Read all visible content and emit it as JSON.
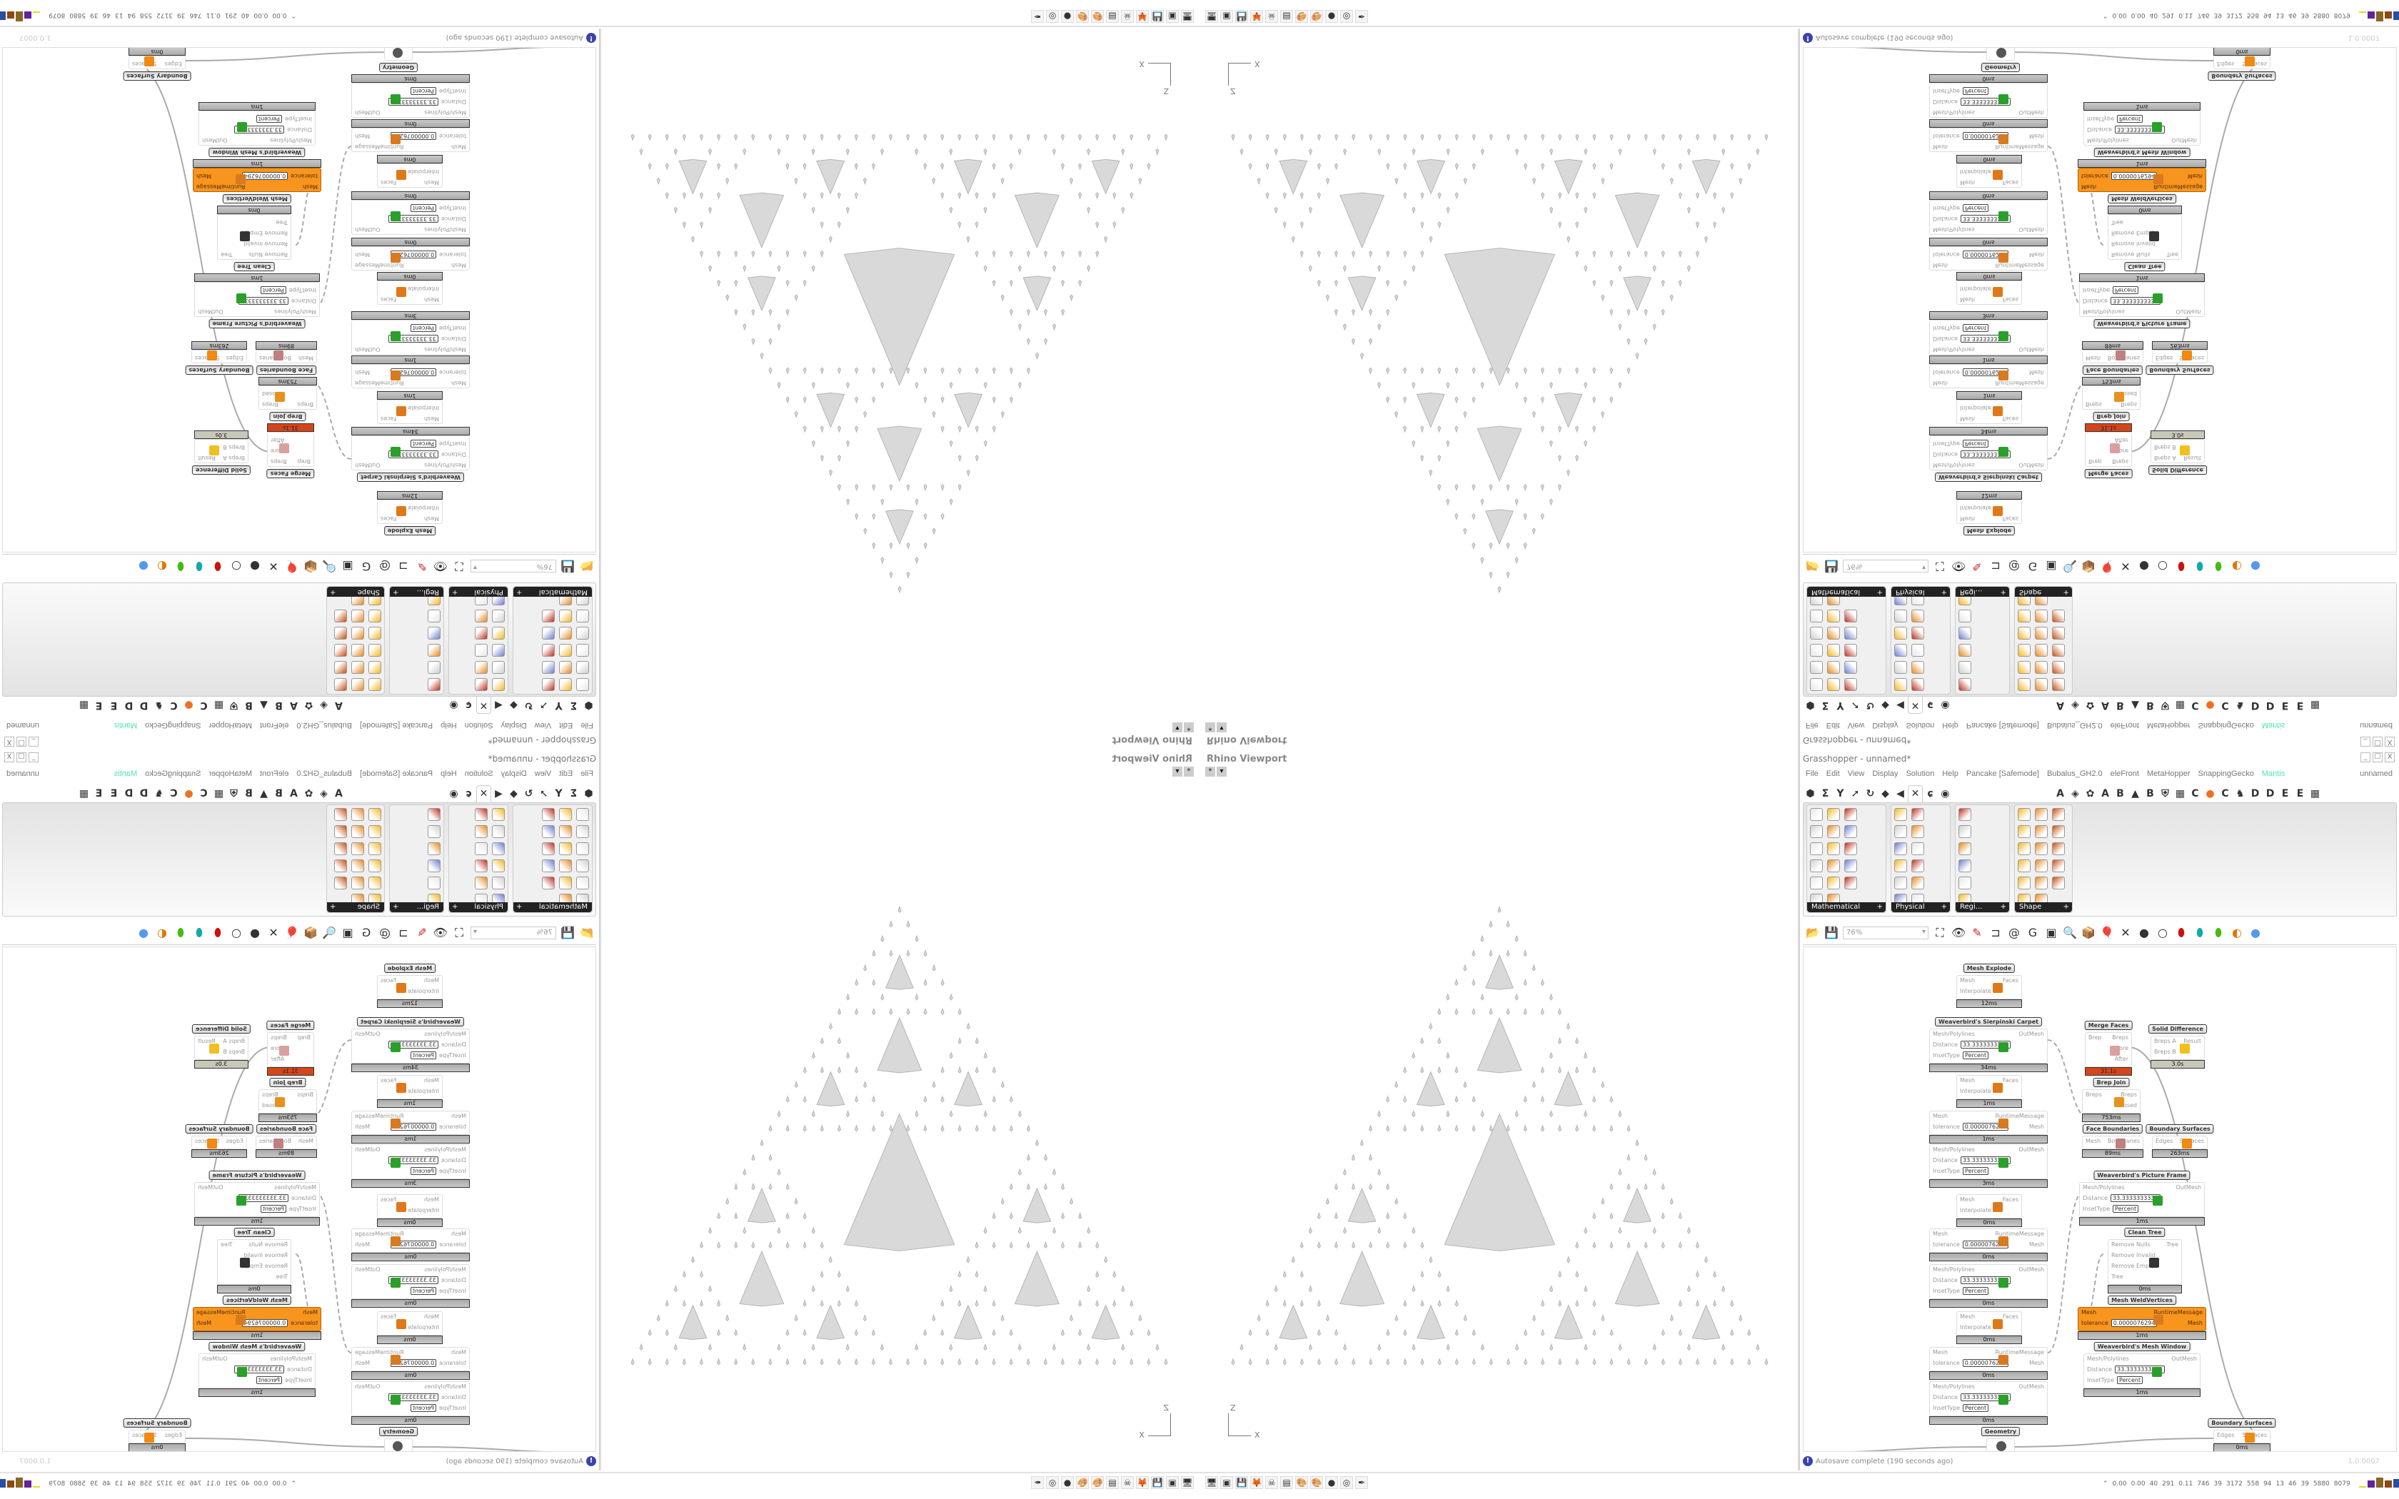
{
  "viewport": {
    "title": "Rhino Viewport",
    "ctl": [
      "*",
      "▾"
    ],
    "axis": {
      "z": "Z",
      "x": "X"
    },
    "fill": "#d9d9d9",
    "stroke": "#b5b5b5"
  },
  "taskbar": {
    "icons": [
      "remote-desktop-icon",
      "gpu-icon",
      "floppy-64-icon",
      "firefox-icon",
      "red-app-icon",
      "calculator-icon",
      "paint-icon",
      "paint-icon",
      "purple-app-icon",
      "blender-icon",
      "inkscape-icon"
    ],
    "perf": [
      "0.00",
      "0.00",
      "40",
      "291",
      "0.11",
      "746",
      "39",
      "3172",
      "558",
      "94",
      "13",
      "46",
      "39",
      "5880",
      "8079"
    ]
  },
  "grasshopper": {
    "title": "Grasshopper - unnamed*",
    "window_buttons": [
      "_",
      "☐",
      "X"
    ],
    "menu": [
      "File",
      "Edit",
      "View",
      "Display",
      "Solution",
      "Help",
      "Pancake [Safemode]",
      "Bubalus_GH2.0",
      "eleFront",
      "MetaHopper",
      "SnappingGecko",
      "Mantis"
    ],
    "menu_accent": "#4fe3b0",
    "document": "unnamed",
    "tabs": [
      "⬢",
      "Σ",
      "Y",
      "➚",
      "↻",
      "◆",
      "◀",
      "✕",
      "ɕ",
      "◉",
      "",
      "A",
      "◈",
      "✿",
      "A",
      "B",
      "▲",
      "B",
      "⛨",
      "▦",
      "C",
      "●",
      "C",
      "♞",
      "D",
      "D",
      "E",
      "E",
      "▦"
    ],
    "selected_tab": 7,
    "panels": [
      {
        "label": "Mathematical",
        "cols": 3,
        "count": 17
      },
      {
        "label": "Physical",
        "cols": 2,
        "count": 12
      },
      {
        "label": "Regi...",
        "cols": 1,
        "count": 6
      },
      {
        "label": "Shape",
        "cols": 3,
        "count": 17
      }
    ],
    "panel_more": "+",
    "toolbar": {
      "zoom": "76%",
      "icons": [
        "open-file-icon",
        "save-icon",
        "zoom-extents-icon",
        "preview-eye-icon",
        "sketch-icon",
        "plugin-icon",
        "email-icon",
        "gha-icon",
        "window-icon",
        "search-icon",
        "package-icon",
        "balloon-icon",
        "wires-icon",
        "shaded-icon",
        "wireframe-icon",
        "red-cylinder-icon",
        "teal-cylinder-icon",
        "green-cylinder-icon",
        "half-sphere-icon",
        "blue-sphere-icon"
      ]
    },
    "status": {
      "message": "Autosave complete (190 seconds ago)",
      "version": "1.0.0007"
    },
    "nodes": [
      {
        "title": "Mesh Explode",
        "in": [
          "Mesh",
          "Interpolate"
        ],
        "out": [
          "Faces"
        ],
        "time": "12ms",
        "icon": "#e0781a"
      },
      {
        "title": "Weaverbird's Sierpinski Carpet",
        "in": [
          "Mesh/Polylines",
          "Distance",
          "InsetType"
        ],
        "vals": [
          "33.3333333333",
          "Percent"
        ],
        "out": [
          "OutMesh"
        ],
        "time": "34ms",
        "icon": "#2aa02a"
      },
      {
        "in": [
          "Mesh",
          "Interpolate"
        ],
        "out": [
          "Faces"
        ],
        "time": "1ms",
        "icon": "#e0781a"
      },
      {
        "in": [
          "Mesh",
          "tolerance"
        ],
        "vals": [
          "0.0000076294"
        ],
        "out": [
          "RuntimeMessage",
          "Mesh"
        ],
        "time": "1ms",
        "icon": "#d87a20"
      },
      {
        "in": [
          "Mesh/Polylines",
          "Distance",
          "InsetType"
        ],
        "vals": [
          "33.3333333333",
          "Percent"
        ],
        "out": [
          "OutMesh"
        ],
        "time": "3ms",
        "icon": "#2aa02a"
      },
      {
        "in": [
          "Mesh",
          "Interpolate"
        ],
        "out": [
          "Faces"
        ],
        "time": "0ms",
        "icon": "#e0781a"
      },
      {
        "in": [
          "Mesh",
          "tolerance"
        ],
        "vals": [
          "0.0000076294"
        ],
        "out": [
          "RuntimeMessage",
          "Mesh"
        ],
        "time": "0ms",
        "icon": "#d87a20"
      },
      {
        "in": [
          "Mesh/Polylines",
          "Distance",
          "InsetType"
        ],
        "vals": [
          "33.3333333333",
          "Percent"
        ],
        "out": [
          "OutMesh"
        ],
        "time": "0ms",
        "icon": "#2aa02a"
      },
      {
        "in": [
          "Mesh",
          "Interpolate"
        ],
        "out": [
          "Faces"
        ],
        "time": "0ms",
        "icon": "#e0781a"
      },
      {
        "in": [
          "Mesh",
          "tolerance"
        ],
        "vals": [
          "0.0000076294"
        ],
        "out": [
          "RuntimeMessage",
          "Mesh"
        ],
        "time": "0ms",
        "icon": "#d87a20"
      },
      {
        "in": [
          "Mesh/Polylines",
          "Distance",
          "InsetType"
        ],
        "vals": [
          "33.3333333333",
          "Percent"
        ],
        "out": [
          "OutMesh"
        ],
        "time": "0ms",
        "icon": "#2aa02a"
      },
      {
        "title": "Geometry",
        "in": [],
        "out": [],
        "time": "0ms",
        "icon": "#555"
      },
      {
        "title": "Merge Faces",
        "in": [
          "Brep"
        ],
        "out": [
          "Breps",
          "Before",
          "After"
        ],
        "time": "31.1s",
        "icon": "#d9a0a0",
        "state": "error"
      },
      {
        "title": "Solid Difference",
        "in": [
          "Breps A",
          "Breps B"
        ],
        "out": [
          "Result"
        ],
        "time": "3.0s",
        "icon": "#f0c020",
        "state": "warning"
      },
      {
        "title": "Brep Join",
        "in": [
          "Breps"
        ],
        "out": [
          "Breps",
          "Closed"
        ],
        "time": "753ms",
        "icon": "#e89020"
      },
      {
        "title": "Face Boundaries",
        "in": [
          "Mesh"
        ],
        "out": [
          "Boundaries"
        ],
        "time": "89ms",
        "icon": "#c08080"
      },
      {
        "title": "Boundary Surfaces",
        "in": [
          "Edges"
        ],
        "out": [
          "Surfaces"
        ],
        "time": "263ms",
        "icon": "#f08a10"
      },
      {
        "title": "Weaverbird's Picture Frame",
        "in": [
          "Mesh/Polylines",
          "Distance",
          "InsetType"
        ],
        "vals": [
          "33.3333333333",
          "Percent"
        ],
        "out": [
          "OutMesh"
        ],
        "time": "1ms",
        "icon": "#2aa02a"
      },
      {
        "title": "Clean Tree",
        "in": [
          "Remove Nulls",
          "Remove Invalid",
          "Remove Empty",
          "Tree"
        ],
        "out": [
          "Tree"
        ],
        "time": "0ms",
        "icon": "#333"
      },
      {
        "title": "Mesh WeldVertices",
        "in": [
          "Mesh",
          "tolerance"
        ],
        "vals": [
          "0.0000076294"
        ],
        "out": [
          "RuntimeMessage",
          "Mesh"
        ],
        "time": "1ms",
        "icon": "#d87a20",
        "state": "selected"
      },
      {
        "title": "Weaverbird's Mesh Window",
        "in": [
          "Mesh/Polylines",
          "Distance",
          "InsetType"
        ],
        "vals": [
          "33.3333333333",
          "Percent"
        ],
        "out": [
          "OutMesh"
        ],
        "time": "1ms",
        "icon": "#2aa02a"
      },
      {
        "title": "Boundary Surfaces",
        "in": [
          "Edges"
        ],
        "out": [
          "Surfaces"
        ],
        "time": "0ms",
        "icon": "#f08a10"
      }
    ]
  }
}
